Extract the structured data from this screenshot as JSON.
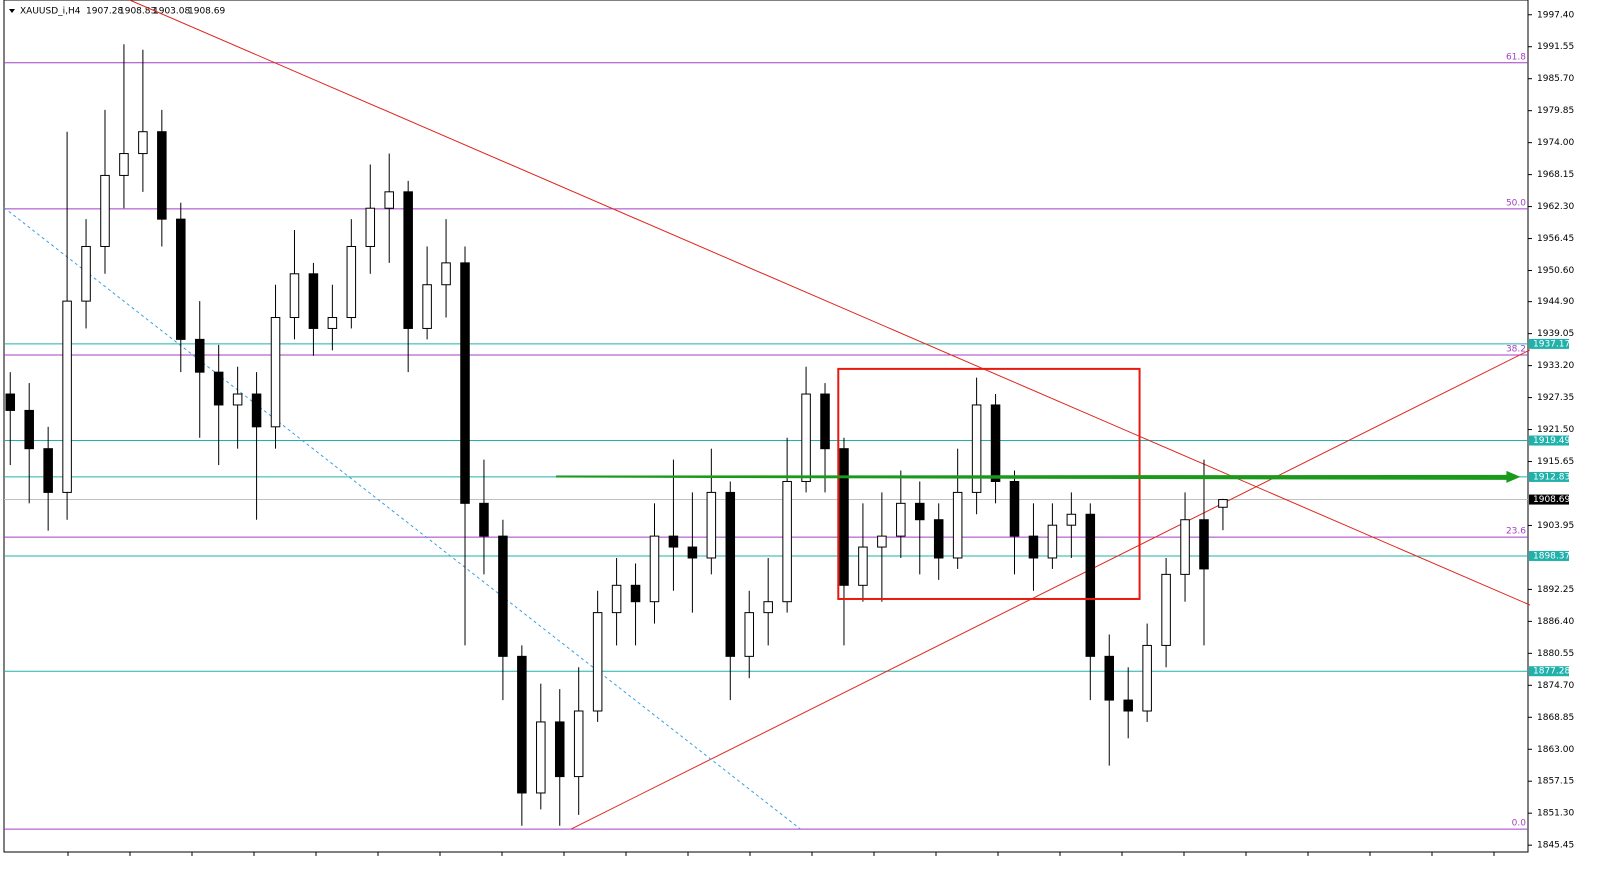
{
  "chart_data": {
    "type": "candlestick",
    "symbol": "XAUUSD_i,H4",
    "open": [
      1928,
      1925,
      1918,
      1910,
      1945,
      1955,
      1968,
      1972,
      1976,
      1960,
      1938,
      1932,
      1926,
      1928,
      1922,
      1942,
      1950,
      1940,
      1942,
      1955,
      1962,
      1965,
      1940,
      1948,
      1952,
      1908,
      1902,
      1880,
      1855,
      1868,
      1858,
      1870,
      1888,
      1893,
      1890,
      1902,
      1900,
      1898,
      1910,
      1880,
      1888,
      1890,
      1912,
      1928,
      1918,
      1893,
      1900,
      1902,
      1908,
      1905,
      1898,
      1910,
      1926,
      1912,
      1902,
      1898,
      1904,
      1906,
      1880,
      1872,
      1870,
      1882,
      1895,
      1905,
      1907.28
    ],
    "high": [
      1932,
      1930,
      1922,
      1976,
      1960,
      1980,
      1992,
      1991,
      1980,
      1963,
      1945,
      1937,
      1933,
      1932,
      1948,
      1958,
      1952,
      1948,
      1960,
      1970,
      1972,
      1967,
      1955,
      1960,
      1955,
      1916,
      1905,
      1882,
      1875,
      1874,
      1878,
      1892,
      1898,
      1897,
      1908,
      1916,
      1910,
      1918,
      1912,
      1892,
      1898,
      1920,
      1933,
      1930,
      1920,
      1908,
      1910,
      1914,
      1912,
      1908,
      1918,
      1931,
      1928,
      1914,
      1908,
      1908,
      1910,
      1908,
      1884,
      1878,
      1886,
      1898,
      1910,
      1916,
      1908.83
    ],
    "low": [
      1915,
      1908,
      1903,
      1905,
      1940,
      1950,
      1962,
      1965,
      1955,
      1932,
      1920,
      1915,
      1918,
      1905,
      1918,
      1938,
      1935,
      1936,
      1940,
      1950,
      1952,
      1932,
      1938,
      1942,
      1882,
      1895,
      1872,
      1849,
      1852,
      1849,
      1851,
      1868,
      1882,
      1882,
      1886,
      1892,
      1888,
      1895,
      1872,
      1876,
      1882,
      1888,
      1910,
      1910,
      1882,
      1890,
      1890,
      1898,
      1895,
      1894,
      1896,
      1906,
      1908,
      1895,
      1892,
      1896,
      1898,
      1872,
      1860,
      1865,
      1868,
      1878,
      1890,
      1882,
      1903.08
    ],
    "close": [
      1925,
      1918,
      1910,
      1945,
      1955,
      1968,
      1972,
      1976,
      1960,
      1938,
      1932,
      1926,
      1928,
      1922,
      1942,
      1950,
      1940,
      1942,
      1955,
      1962,
      1965,
      1940,
      1948,
      1952,
      1908,
      1902,
      1880,
      1855,
      1868,
      1858,
      1870,
      1888,
      1893,
      1890,
      1902,
      1900,
      1898,
      1910,
      1880,
      1888,
      1890,
      1912,
      1928,
      1918,
      1893,
      1900,
      1902,
      1908,
      1905,
      1898,
      1910,
      1926,
      1912,
      1902,
      1898,
      1904,
      1906,
      1880,
      1872,
      1870,
      1882,
      1895,
      1905,
      1896,
      1908.69
    ],
    "up_color": "#ffffff",
    "down_color": "#000000",
    "xlim": [
      -0.33,
      80.1
    ],
    "ylim": [
      1844.2,
      2000.1
    ],
    "yticks": [
      {
        "value": 1997.4,
        "label": "1997.40"
      },
      1991.55,
      {
        "value": 1985.7,
        "label": "1985.70"
      },
      1979.85,
      {
        "value": 1974,
        "label": "1974.00"
      },
      1968.15,
      {
        "value": 1962.3,
        "label": "1962.30"
      },
      1956.45,
      {
        "value": 1950.6,
        "label": "1950.60"
      },
      {
        "value": 1944.9,
        "label": "1944.90"
      },
      1939.05,
      {
        "value": 1933.2,
        "label": "1933.20"
      },
      1927.35,
      {
        "value": 1921.5,
        "label": "1921.50"
      },
      1915.65,
      1903.95,
      1892.25,
      {
        "value": 1886.4,
        "label": "1886.40"
      },
      1880.55,
      {
        "value": 1874.7,
        "label": "1874.70"
      },
      1868.85,
      {
        "value": 1863,
        "label": "1863.00"
      },
      1857.15,
      {
        "value": 1851.3,
        "label": "1851.30"
      },
      1845.45
    ],
    "fib_color": "#a43fc4",
    "fib_levels": [
      {
        "value": 1988.61,
        "label": "61.8"
      },
      {
        "value": 1961.88,
        "label": "50.0"
      },
      {
        "value": 1935.14,
        "label": "38.2"
      },
      {
        "value": 1901.82,
        "label": "23.6"
      },
      {
        "value": 1848.38,
        "label": "0.0"
      }
    ],
    "level_color": "#20b2aa",
    "levels": [
      1937.17,
      1919.49,
      1912.83,
      1898.37,
      1877.28
    ],
    "trendlines": [
      {
        "color": "#e0261c",
        "dash": false,
        "points": [
          [
            6.3,
            2000.1
          ],
          [
            80.2,
            1889.4
          ]
        ]
      },
      {
        "color": "#e0261c",
        "dash": false,
        "points": [
          [
            29.6,
            1848.4
          ],
          [
            80.2,
            1936.07
          ]
        ]
      },
      {
        "color": "#3aa0e0",
        "dash": true,
        "points": [
          [
            -0.33,
            1962.1
          ],
          [
            41.7,
            1848.4
          ]
        ]
      }
    ],
    "box": {
      "color": "#e8190f",
      "x": [
        43.7,
        59.6
      ],
      "y": [
        1890.5,
        1932.6
      ]
    },
    "arrow": {
      "color": "#1a9a1a",
      "x": [
        28.8,
        79.7
      ],
      "y": [
        1912.9,
        1912.83
      ]
    }
  }
}
